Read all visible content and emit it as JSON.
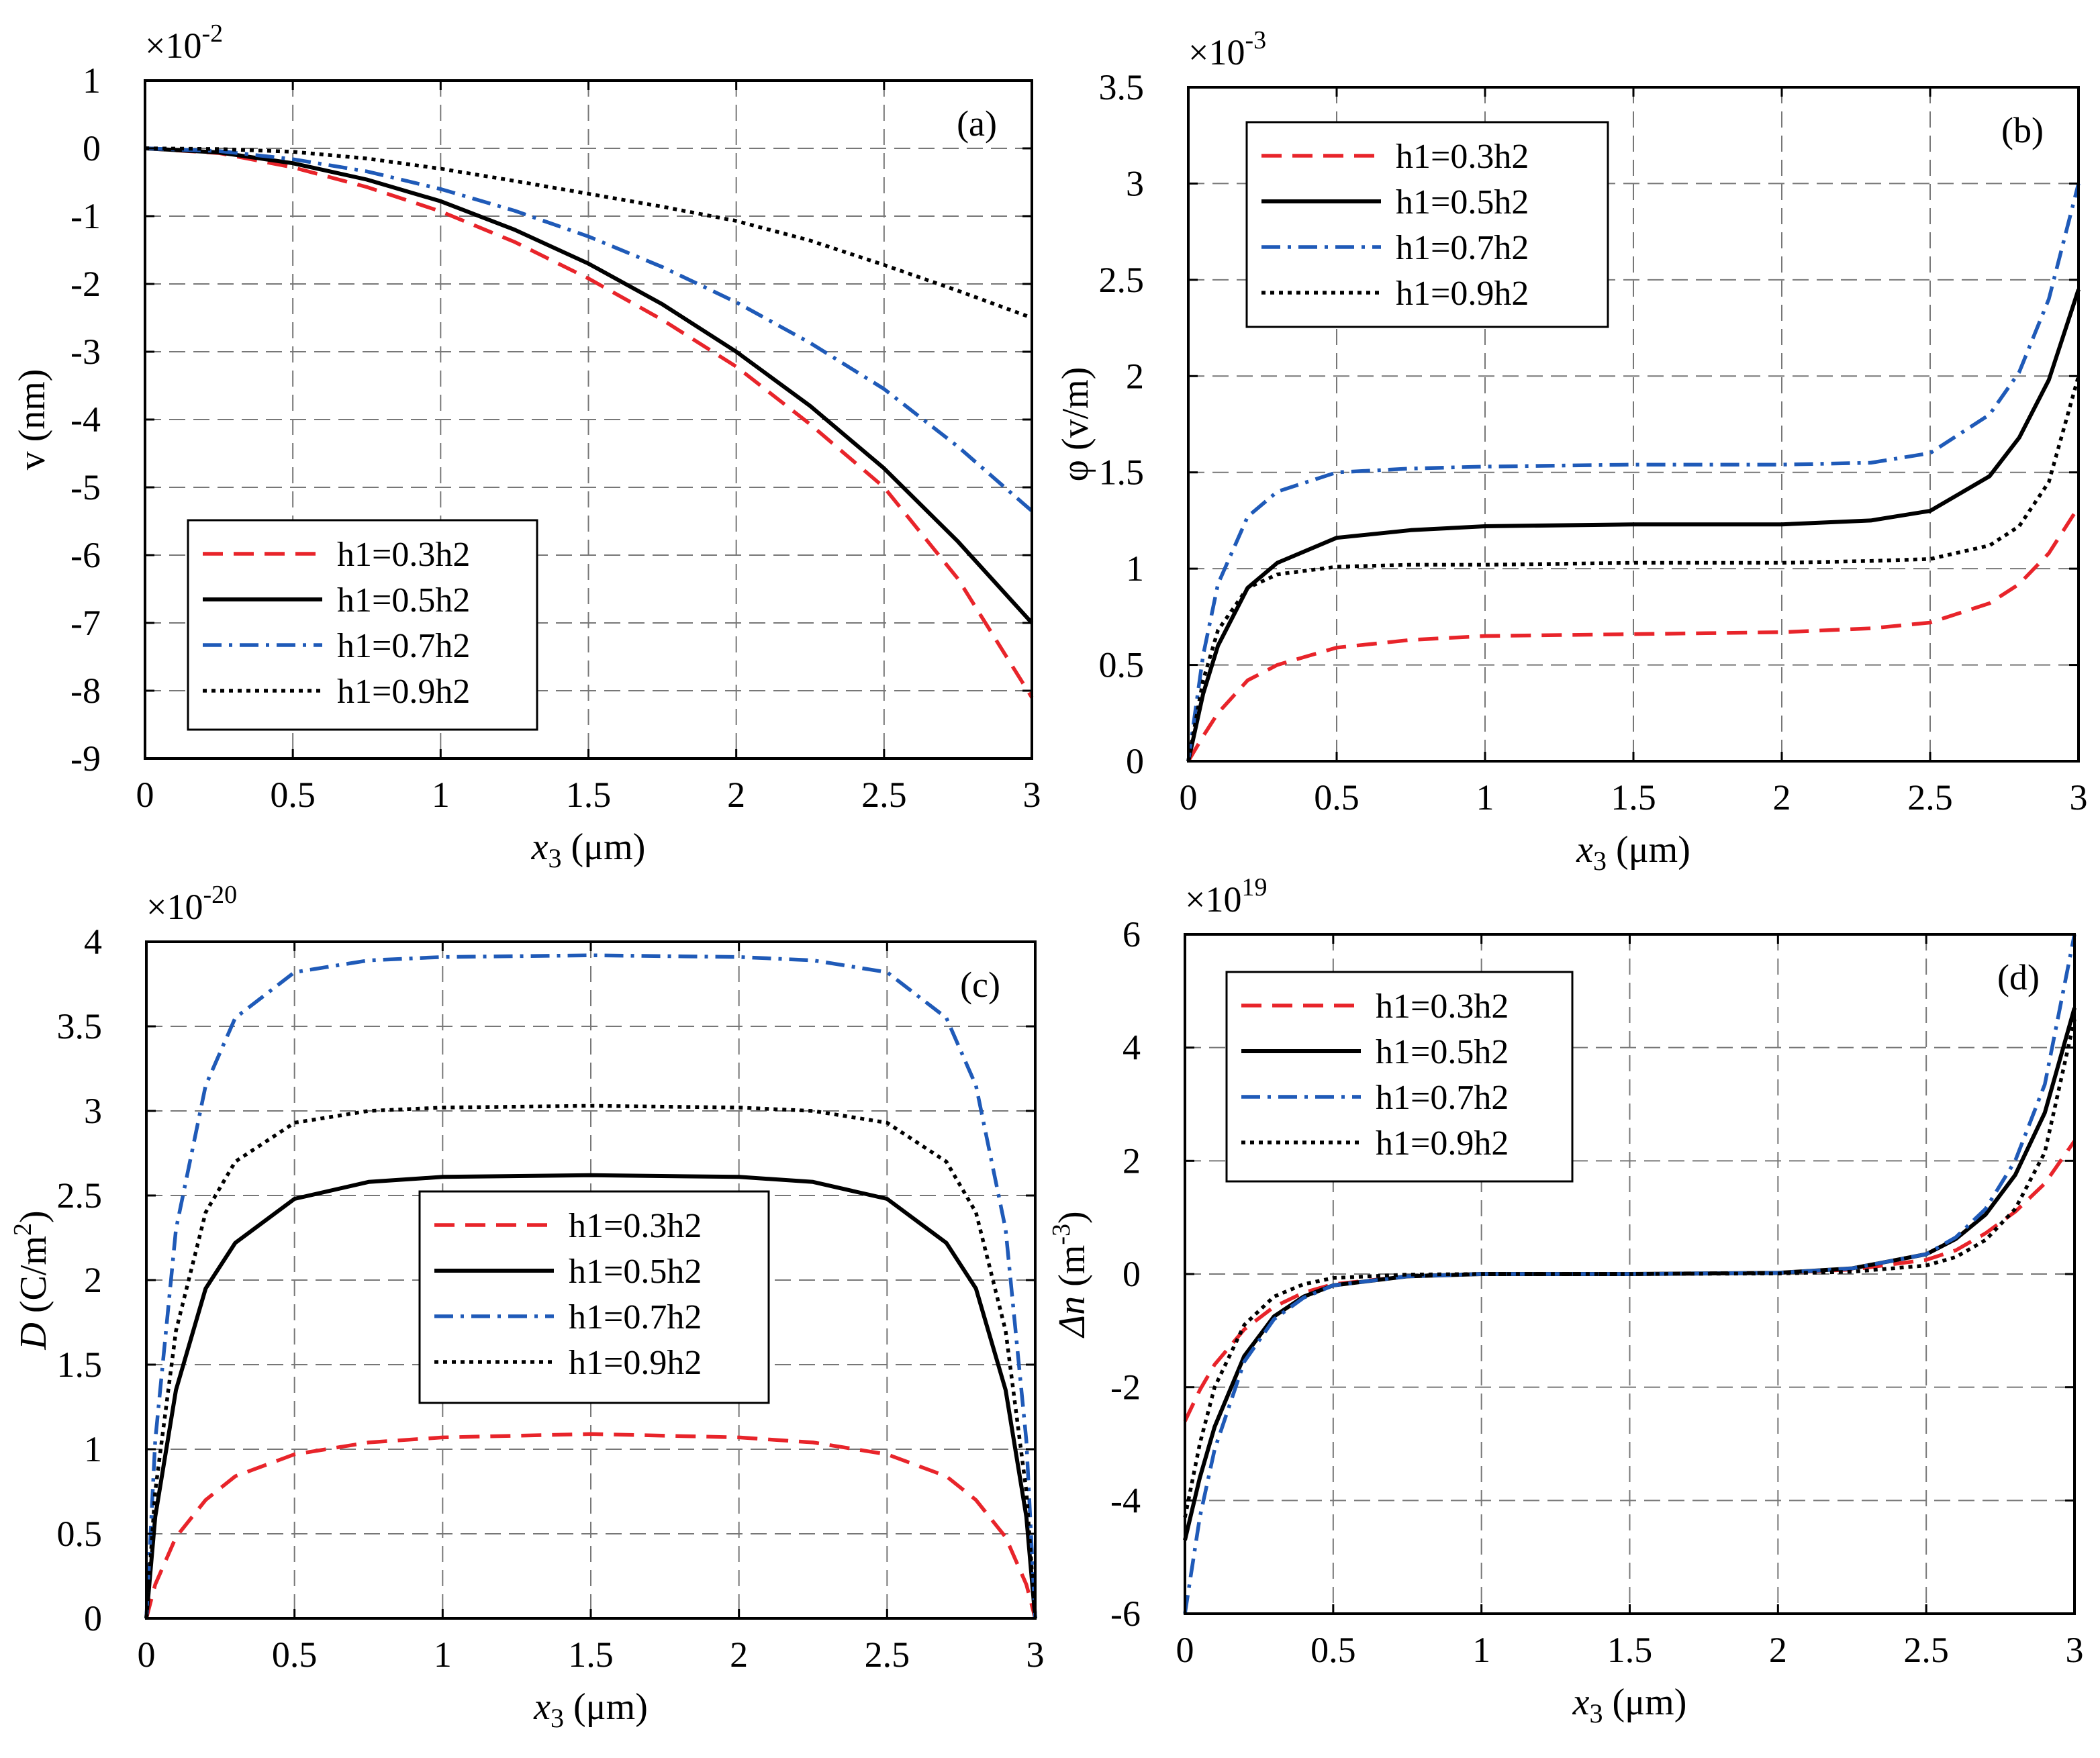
{
  "chart_data": [
    {
      "type": "line",
      "panel": "(a)",
      "xlabel_var": "x",
      "xlabel_sub": "3",
      "xlabel_unit": " (μm)",
      "ylabel": "v (nm)",
      "exponent_base": "×10",
      "exponent_power": "-2",
      "xlim": [
        0,
        3
      ],
      "ylim": [
        -9,
        1
      ],
      "xticks": [
        0,
        0.5,
        1,
        1.5,
        2,
        2.5,
        3
      ],
      "yticks": [
        -9,
        -8,
        -7,
        -6,
        -5,
        -4,
        -3,
        -2,
        -1,
        0,
        1
      ],
      "legend_position": "lower-left",
      "series": [
        {
          "name": "h1=0.3h2",
          "color": "#e8242a",
          "style": "dashed",
          "x": [
            0,
            0.25,
            0.5,
            0.75,
            1.0,
            1.25,
            1.5,
            1.75,
            2.0,
            2.25,
            2.5,
            2.75,
            3.0
          ],
          "values": [
            0,
            -0.07,
            -0.28,
            -0.57,
            -0.93,
            -1.38,
            -1.92,
            -2.53,
            -3.22,
            -4.07,
            -5.0,
            -6.35,
            -8.1
          ]
        },
        {
          "name": "h1=0.5h2",
          "color": "#000000",
          "style": "solid",
          "x": [
            0,
            0.25,
            0.5,
            0.75,
            1.0,
            1.25,
            1.5,
            1.75,
            2.0,
            2.25,
            2.5,
            2.75,
            3.0
          ],
          "values": [
            0,
            -0.06,
            -0.22,
            -0.46,
            -0.78,
            -1.2,
            -1.7,
            -2.3,
            -3.0,
            -3.8,
            -4.72,
            -5.8,
            -7.0
          ]
        },
        {
          "name": "h1=0.7h2",
          "color": "#1f5ab8",
          "style": "dashdot",
          "x": [
            0,
            0.25,
            0.5,
            0.75,
            1.0,
            1.25,
            1.5,
            1.75,
            2.0,
            2.25,
            2.5,
            2.75,
            3.0
          ],
          "values": [
            0,
            -0.04,
            -0.16,
            -0.34,
            -0.6,
            -0.92,
            -1.3,
            -1.75,
            -2.27,
            -2.87,
            -3.55,
            -4.4,
            -5.35
          ]
        },
        {
          "name": "h1=0.9h2",
          "color": "#000000",
          "style": "dotted",
          "x": [
            0,
            0.25,
            0.5,
            0.75,
            1.0,
            1.25,
            1.5,
            1.75,
            2.0,
            2.25,
            2.5,
            2.75,
            3.0
          ],
          "values": [
            0,
            -0.01,
            -0.05,
            -0.15,
            -0.3,
            -0.48,
            -0.67,
            -0.86,
            -1.07,
            -1.36,
            -1.72,
            -2.1,
            -2.5
          ]
        }
      ]
    },
    {
      "type": "line",
      "panel": "(b)",
      "xlabel_var": "x",
      "xlabel_sub": "3",
      "xlabel_unit": " (μm)",
      "ylabel": "φ (v/m)",
      "exponent_base": "×10",
      "exponent_power": "-3",
      "xlim": [
        0,
        3
      ],
      "ylim": [
        0,
        3.5
      ],
      "xticks": [
        0,
        0.5,
        1,
        1.5,
        2,
        2.5,
        3
      ],
      "yticks": [
        0,
        0.5,
        1,
        1.5,
        2,
        2.5,
        3,
        3.5
      ],
      "legend_position": "upper-left",
      "series": [
        {
          "name": "h1=0.3h2",
          "color": "#e8242a",
          "style": "dashed",
          "x": [
            0,
            0.05,
            0.1,
            0.2,
            0.3,
            0.5,
            0.75,
            1.0,
            1.5,
            2.0,
            2.3,
            2.5,
            2.7,
            2.8,
            2.9,
            3.0
          ],
          "values": [
            0,
            0.13,
            0.25,
            0.42,
            0.5,
            0.59,
            0.63,
            0.65,
            0.66,
            0.67,
            0.69,
            0.72,
            0.82,
            0.92,
            1.08,
            1.32
          ]
        },
        {
          "name": "h1=0.5h2",
          "color": "#000000",
          "style": "solid",
          "x": [
            0,
            0.05,
            0.1,
            0.2,
            0.3,
            0.5,
            0.75,
            1.0,
            1.5,
            2.0,
            2.3,
            2.5,
            2.7,
            2.8,
            2.9,
            3.0
          ],
          "values": [
            0,
            0.35,
            0.6,
            0.9,
            1.03,
            1.16,
            1.2,
            1.22,
            1.23,
            1.23,
            1.25,
            1.3,
            1.48,
            1.68,
            1.98,
            2.45
          ]
        },
        {
          "name": "h1=0.7h2",
          "color": "#1f5ab8",
          "style": "dashdot",
          "x": [
            0,
            0.05,
            0.1,
            0.2,
            0.3,
            0.5,
            0.75,
            1.0,
            1.5,
            2.0,
            2.3,
            2.5,
            2.7,
            2.8,
            2.9,
            3.0
          ],
          "values": [
            0,
            0.55,
            0.92,
            1.27,
            1.4,
            1.5,
            1.52,
            1.53,
            1.54,
            1.54,
            1.55,
            1.6,
            1.8,
            2.02,
            2.4,
            3.0
          ]
        },
        {
          "name": "h1=0.9h2",
          "color": "#000000",
          "style": "dotted",
          "x": [
            0,
            0.05,
            0.1,
            0.2,
            0.3,
            0.5,
            0.75,
            1.0,
            1.5,
            2.0,
            2.3,
            2.5,
            2.7,
            2.8,
            2.9,
            3.0
          ],
          "values": [
            0,
            0.42,
            0.68,
            0.9,
            0.97,
            1.01,
            1.02,
            1.02,
            1.03,
            1.03,
            1.04,
            1.05,
            1.12,
            1.22,
            1.45,
            2.0
          ]
        }
      ]
    },
    {
      "type": "line",
      "panel": "(c)",
      "xlabel_var": "x",
      "xlabel_sub": "3",
      "xlabel_unit": " (μm)",
      "ylabel_var": "D",
      "ylabel_unit": "(C/m",
      "ylabel_sup": "2",
      "ylabel_close": ")",
      "exponent_base": "×10",
      "exponent_power": "-20",
      "xlim": [
        0,
        3
      ],
      "ylim": [
        0,
        4
      ],
      "xticks": [
        0,
        0.5,
        1,
        1.5,
        2,
        2.5,
        3
      ],
      "yticks": [
        0,
        0.5,
        1,
        1.5,
        2,
        2.5,
        3,
        3.5,
        4
      ],
      "legend_position": "center-right",
      "series": [
        {
          "name": "h1=0.3h2",
          "color": "#e8242a",
          "style": "dashed",
          "x": [
            0,
            0.03,
            0.1,
            0.2,
            0.3,
            0.5,
            0.75,
            1.0,
            1.5,
            2.0,
            2.25,
            2.5,
            2.7,
            2.8,
            2.9,
            2.97,
            3.0
          ],
          "values": [
            0,
            0.2,
            0.48,
            0.7,
            0.84,
            0.97,
            1.04,
            1.07,
            1.09,
            1.07,
            1.04,
            0.97,
            0.84,
            0.7,
            0.48,
            0.2,
            0
          ]
        },
        {
          "name": "h1=0.5h2",
          "color": "#000000",
          "style": "solid",
          "x": [
            0,
            0.03,
            0.1,
            0.2,
            0.3,
            0.5,
            0.75,
            1.0,
            1.5,
            2.0,
            2.25,
            2.5,
            2.7,
            2.8,
            2.9,
            2.97,
            3.0
          ],
          "values": [
            0,
            0.6,
            1.35,
            1.95,
            2.22,
            2.48,
            2.58,
            2.61,
            2.62,
            2.61,
            2.58,
            2.48,
            2.22,
            1.95,
            1.35,
            0.6,
            0
          ]
        },
        {
          "name": "h1=0.7h2",
          "color": "#1f5ab8",
          "style": "dashdot",
          "x": [
            0,
            0.03,
            0.1,
            0.2,
            0.3,
            0.5,
            0.75,
            1.0,
            1.5,
            2.0,
            2.25,
            2.5,
            2.7,
            2.8,
            2.9,
            2.97,
            3.0
          ],
          "values": [
            0,
            1.05,
            2.3,
            3.15,
            3.55,
            3.82,
            3.89,
            3.91,
            3.92,
            3.91,
            3.89,
            3.82,
            3.55,
            3.15,
            2.3,
            1.05,
            0
          ]
        },
        {
          "name": "h1=0.9h2",
          "color": "#000000",
          "style": "dotted",
          "x": [
            0,
            0.03,
            0.1,
            0.2,
            0.3,
            0.5,
            0.75,
            1.0,
            1.5,
            2.0,
            2.25,
            2.5,
            2.7,
            2.8,
            2.9,
            2.97,
            3.0
          ],
          "values": [
            0,
            0.75,
            1.7,
            2.4,
            2.7,
            2.93,
            3.0,
            3.02,
            3.03,
            3.02,
            3.0,
            2.93,
            2.7,
            2.4,
            1.7,
            0.75,
            0
          ]
        }
      ]
    },
    {
      "type": "line",
      "panel": "(d)",
      "xlabel_var": "x",
      "xlabel_sub": "3",
      "xlabel_unit": " (μm)",
      "ylabel_var": "Δn",
      "ylabel_unit": "(m",
      "ylabel_sup": "-3",
      "ylabel_close": ")",
      "exponent_base": "×10",
      "exponent_power": "19",
      "xlim": [
        0,
        3
      ],
      "ylim": [
        -6,
        6
      ],
      "xticks": [
        0,
        0.5,
        1,
        1.5,
        2,
        2.5,
        3
      ],
      "yticks": [
        -6,
        -4,
        -2,
        0,
        2,
        4,
        6
      ],
      "legend_position": "upper-left",
      "series": [
        {
          "name": "h1=0.3h2",
          "color": "#e8242a",
          "style": "dashed",
          "x": [
            0,
            0.05,
            0.1,
            0.2,
            0.3,
            0.4,
            0.5,
            0.75,
            1.0,
            1.5,
            2.0,
            2.25,
            2.5,
            2.6,
            2.7,
            2.8,
            2.9,
            3.0
          ],
          "values": [
            -2.6,
            -2.05,
            -1.6,
            -0.98,
            -0.58,
            -0.33,
            -0.18,
            -0.04,
            0,
            0,
            0.02,
            0.08,
            0.25,
            0.42,
            0.72,
            1.1,
            1.6,
            2.35
          ]
        },
        {
          "name": "h1=0.5h2",
          "color": "#000000",
          "style": "solid",
          "x": [
            0,
            0.05,
            0.1,
            0.2,
            0.3,
            0.4,
            0.5,
            0.75,
            1.0,
            1.5,
            2.0,
            2.25,
            2.5,
            2.6,
            2.7,
            2.8,
            2.9,
            3.0
          ],
          "values": [
            -4.7,
            -3.6,
            -2.7,
            -1.45,
            -0.75,
            -0.4,
            -0.2,
            -0.04,
            0,
            0,
            0.02,
            0.1,
            0.35,
            0.62,
            1.05,
            1.75,
            2.85,
            4.7
          ]
        },
        {
          "name": "h1=0.7h2",
          "color": "#1f5ab8",
          "style": "dashdot",
          "x": [
            0,
            0.05,
            0.1,
            0.2,
            0.3,
            0.4,
            0.5,
            0.75,
            1.0,
            1.5,
            2.0,
            2.25,
            2.5,
            2.6,
            2.7,
            2.8,
            2.9,
            3.0
          ],
          "values": [
            -6.0,
            -4.3,
            -3.1,
            -1.55,
            -0.8,
            -0.42,
            -0.2,
            -0.04,
            0,
            0,
            0.02,
            0.1,
            0.35,
            0.65,
            1.15,
            2.0,
            3.35,
            6.0
          ]
        },
        {
          "name": "h1=0.9h2",
          "color": "#000000",
          "style": "dotted",
          "x": [
            0,
            0.05,
            0.1,
            0.2,
            0.3,
            0.4,
            0.5,
            0.75,
            1.0,
            1.5,
            2.0,
            2.25,
            2.5,
            2.6,
            2.7,
            2.8,
            2.9,
            3.0
          ],
          "values": [
            -4.3,
            -3.0,
            -2.0,
            -0.9,
            -0.4,
            -0.18,
            -0.07,
            -0.01,
            0,
            0,
            0.01,
            0.04,
            0.15,
            0.3,
            0.6,
            1.15,
            2.15,
            4.5
          ]
        }
      ]
    }
  ]
}
